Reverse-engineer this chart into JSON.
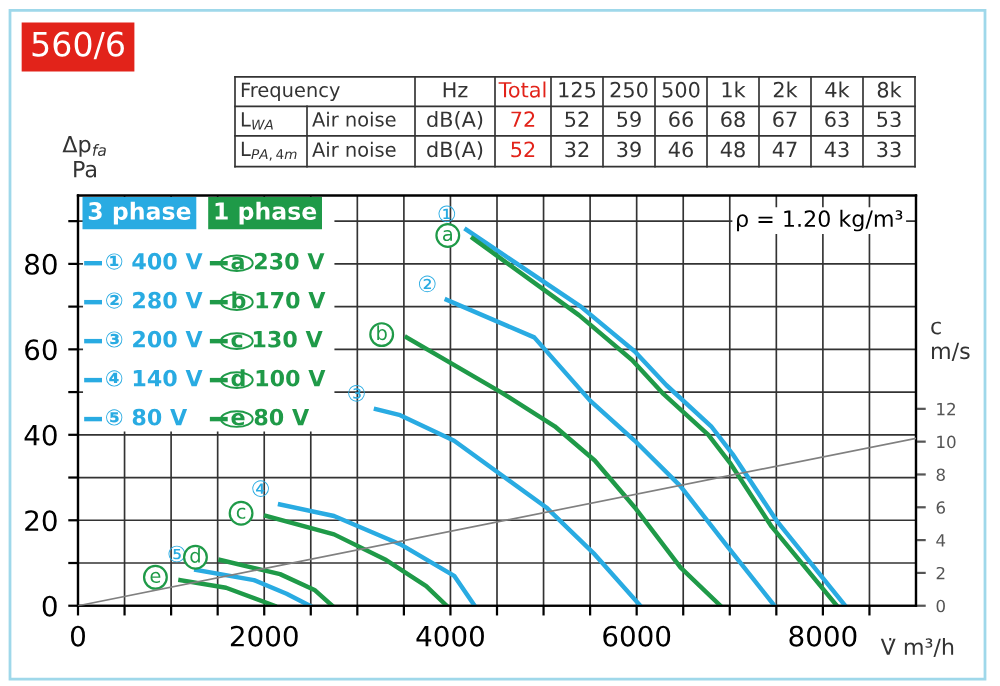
{
  "chart_data": {
    "type": "line",
    "title": "560/6",
    "xlabel": "V̇ m³/h",
    "ylabel": "Δp$_{fa}$\nPa",
    "y2label": "c\nm/s",
    "xlim": [
      0,
      9000
    ],
    "ylim": [
      0,
      96
    ],
    "y2lim": [
      0,
      25
    ],
    "xticks": [
      0,
      {
        "value": 500,
        "label": null
      },
      {
        "value": 1000,
        "label": null
      },
      {
        "value": 1500,
        "label": null
      },
      2000,
      {
        "value": 2500,
        "label": null
      },
      {
        "value": 3000,
        "label": null
      },
      {
        "value": 3500,
        "label": null
      },
      4000,
      {
        "value": 4500,
        "label": null
      },
      {
        "value": 5000,
        "label": null
      },
      {
        "value": 5500,
        "label": null
      },
      6000,
      {
        "value": 6500,
        "label": null
      },
      {
        "value": 7000,
        "label": null
      },
      {
        "value": 7500,
        "label": null
      },
      8000,
      {
        "value": 8500,
        "label": null
      }
    ],
    "yticks": [
      0,
      {
        "value": 10,
        "label": null
      },
      20,
      {
        "value": 30,
        "label": null
      },
      40,
      {
        "value": 50,
        "label": null
      },
      60,
      {
        "value": 70,
        "label": null
      },
      80,
      {
        "value": 90,
        "label": null
      }
    ],
    "y2ticks": [
      0,
      2,
      4,
      6,
      8,
      10,
      12
    ],
    "grid": true,
    "legend": "top left",
    "marker": "none",
    "line_style": "solid",
    "series": [
      {
        "name": "① 400 V",
        "color": "#29abe2",
        "x": [
          4170,
          5400,
          5980,
          6320,
          6800,
          7030,
          7500,
          8240
        ],
        "values": [
          88,
          70,
          59.5,
          51.6,
          42,
          35.5,
          20,
          0
        ]
      },
      {
        "name": "② 280 V",
        "color": "#29abe2",
        "x": [
          3960,
          4900,
          5500,
          5980,
          6470,
          6970,
          7480
        ],
        "values": [
          71.6,
          62.8,
          48,
          38.6,
          28,
          14,
          0
        ]
      },
      {
        "name": "③ 200 V",
        "color": "#29abe2",
        "x": [
          3200,
          3460,
          4040,
          4540,
          5030,
          5550,
          6040
        ],
        "values": [
          46,
          44.6,
          38.6,
          30.7,
          23,
          12,
          0
        ]
      },
      {
        "name": "④ 140 V",
        "color": "#29abe2",
        "x": [
          2170,
          2750,
          3460,
          4040,
          4260
        ],
        "values": [
          23.7,
          21,
          14.4,
          7,
          0
        ]
      },
      {
        "name": "⑤ 80 V",
        "color": "#29abe2",
        "x": [
          1270,
          1890,
          2240,
          2490
        ],
        "values": [
          8.4,
          6,
          2.8,
          0
        ]
      },
      {
        "name": "a 230 V",
        "color": "#1f9a48",
        "x": [
          4240,
          5380,
          5950,
          6290,
          6770,
          7000,
          7450,
          8150
        ],
        "values": [
          86,
          68,
          57.5,
          49.5,
          40,
          33.5,
          18.5,
          0
        ]
      },
      {
        "name": "b 170 V",
        "color": "#1f9a48",
        "x": [
          3530,
          4540,
          5120,
          5550,
          5980,
          6470,
          6900
        ],
        "values": [
          62.8,
          50,
          42,
          34,
          23,
          9,
          0
        ]
      },
      {
        "name": "c 130 V",
        "color": "#1f9a48",
        "x": [
          2020,
          2750,
          3310,
          3740,
          3960
        ],
        "values": [
          21,
          16.7,
          10.7,
          4.6,
          0
        ]
      },
      {
        "name": "d 100 V",
        "color": "#1f9a48",
        "x": [
          1530,
          2170,
          2540,
          2730
        ],
        "values": [
          10.7,
          7.4,
          3.7,
          0
        ]
      },
      {
        "name": "e 80 V",
        "color": "#1f9a48",
        "x": [
          1100,
          1590,
          2110
        ],
        "values": [
          6,
          4.2,
          0
        ]
      },
      {
        "color": "#808080",
        "axis": "y2",
        "x": [
          0,
          9000
        ],
        "values": [
          0,
          10.2
        ]
      }
    ],
    "annotations": [
      "3 phase",
      "1 phase",
      "ρ = 1.20 kg/m³",
      {
        "text": "①",
        "x": 4170,
        "y": 88
      },
      {
        "text": "②",
        "x": 3960,
        "y": 71.6
      },
      {
        "text": "③",
        "x": 3200,
        "y": 46
      },
      {
        "text": "④",
        "x": 2170,
        "y": 23.7
      },
      {
        "text": "⑤",
        "x": 1270,
        "y": 8.4
      },
      {
        "text": "a",
        "x": 4240,
        "y": 86
      },
      {
        "text": "b",
        "x": 3530,
        "y": 62.8
      },
      {
        "text": "c",
        "x": 2020,
        "y": 21
      },
      {
        "text": "d",
        "x": 1530,
        "y": 10.7
      },
      {
        "text": "e",
        "x": 1100,
        "y": 6
      },
      "Frequency",
      "Hz",
      "Total",
      "125",
      "250",
      "500",
      "1k",
      "2k",
      "4k",
      "8k",
      "L$_{WA}$",
      "Air noise",
      "dB(A)",
      "72",
      "52",
      "59",
      "66",
      "68",
      "67",
      "63",
      "53",
      "L$_{PA,4m}$",
      "Air noise",
      "dB(A)",
      "52",
      "32",
      "39",
      "46",
      "48",
      "47",
      "43",
      "33"
    ]
  }
}
